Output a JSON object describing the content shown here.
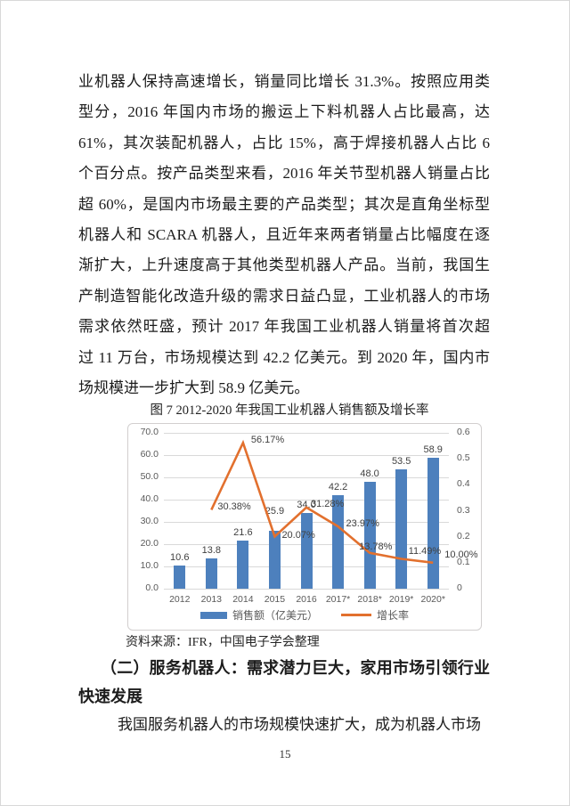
{
  "page": {
    "number": "15"
  },
  "document": {
    "para1_lines": [
      "业机器人保持高速增长，销量同比增长 31.3%。按照应用类",
      "型分，2016 年国内市场的搬运上下料机器人占比最高，达",
      "61%，其次装配机器人，占比 15%，高于焊接机器人占比 6",
      "个百分点。按产品类型来看，2016 年关节型机器人销量占比",
      "超 60%，是国内市场最主要的产品类型；其次是直角坐标型",
      "机器人和 SCARA 机器人，且近年来两者销量占比幅度在逐",
      "渐扩大，上升速度高于其他类型机器人产品。当前，我国生",
      "产制造智能化改造升级的需求日益凸显，工业机器人的市场",
      "需求依然旺盛，预计 2017 年我国工业机器人销量将首次超",
      "过 11 万台，市场规模达到 42.2 亿美元。到 2020 年，国内市",
      "场规模进一步扩大到 58.9 亿美元。"
    ],
    "figure_caption": "图 7  2012-2020 年我国工业机器人销售额及增长率",
    "source_note": "资料来源：IFR，中国电子学会整理",
    "heading_line1": "（二）服务机器人：需求潜力巨大，家用市场引领行业",
    "heading_line2": "快速发展",
    "para2_line": "我国服务机器人的市场规模快速扩大，成为机器人市场"
  },
  "chart_data": {
    "type": "bar",
    "title": "图 7 2012-2020 年我国工业机器人销售额及增长率",
    "categories": [
      "2012",
      "2013",
      "2014",
      "2015",
      "2016",
      "2017*",
      "2018*",
      "2019*",
      "2020*"
    ],
    "series": [
      {
        "name": "销售额（亿美元）",
        "type": "bar",
        "axis": "left",
        "color": "#4d80bd",
        "values": [
          10.6,
          13.8,
          21.6,
          25.9,
          34.0,
          42.2,
          48.0,
          53.5,
          58.9
        ],
        "labels": [
          "10.6",
          "13.8",
          "21.6",
          "25.9",
          "34.0",
          "42.2",
          "48.0",
          "53.5",
          "58.9"
        ],
        "label_dy": [
          0,
          0,
          0,
          -13,
          0,
          0,
          0,
          0,
          0
        ]
      },
      {
        "name": "增长率",
        "type": "line",
        "axis": "right",
        "color": "#e2702e",
        "values": [
          null,
          0.3038,
          0.5617,
          0.2007,
          0.3128,
          0.2397,
          0.1378,
          0.1149,
          0.1
        ],
        "labels": [
          null,
          "30.38%",
          "56.17%",
          "20.07%",
          "31.28%",
          "23.97%",
          "13.78%",
          "11.49%",
          "10.00%"
        ],
        "label_offsets": [
          null,
          [
            7,
            -2
          ],
          [
            9,
            -2
          ],
          [
            8,
            0
          ],
          [
            5,
            -3
          ],
          [
            9,
            -2
          ],
          [
            -12,
            -6
          ],
          [
            8,
            -7
          ],
          [
            13,
            -8
          ]
        ]
      }
    ],
    "left_axis": {
      "min": 0,
      "max": 70,
      "ticks": [
        "70.0",
        "60.0",
        "50.0",
        "40.0",
        "30.0",
        "20.0",
        "10.0",
        "0.0"
      ]
    },
    "right_axis": {
      "min": 0,
      "max": 0.6,
      "ticks": [
        "0.6",
        "0.5",
        "0.4",
        "0.3",
        "0.2",
        "0.1",
        "0"
      ]
    },
    "grid": true,
    "legend_position": "bottom",
    "xlabel": "",
    "ylabel": ""
  }
}
